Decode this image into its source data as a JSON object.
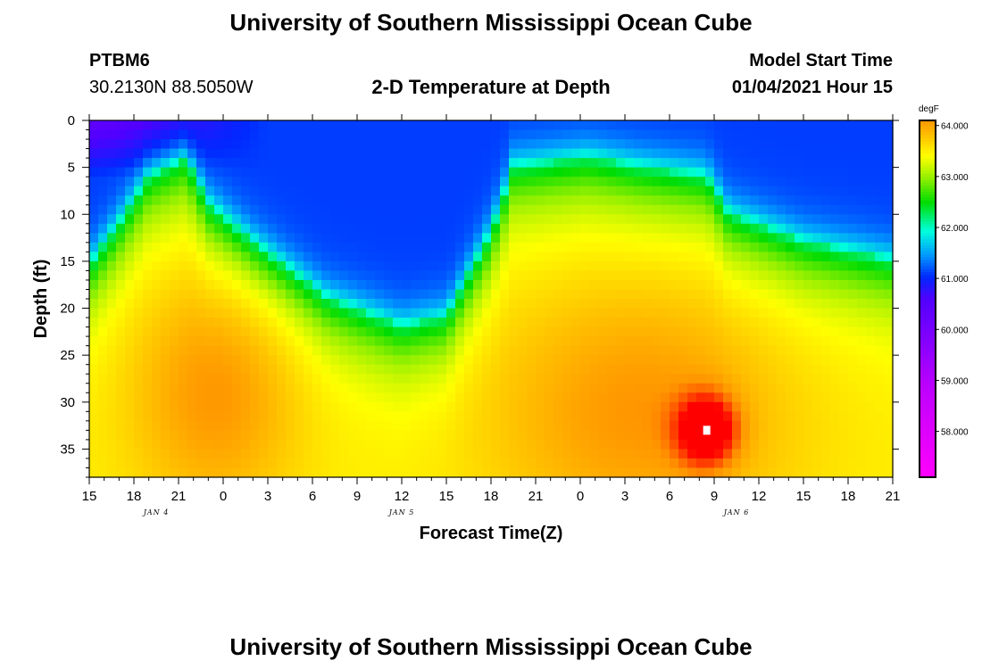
{
  "header": {
    "title": "University of Southern Mississippi Ocean Cube",
    "station": "PTBM6",
    "coordinates": "30.2130N 88.5050W",
    "plot_title": "2-D Temperature at Depth",
    "model_start_label": "Model Start Time",
    "model_start_value": "01/04/2021 Hour 15"
  },
  "footer": {
    "title": "University of Southern Mississippi Ocean Cube"
  },
  "chart_data": {
    "type": "heatmap",
    "title": "2-D Temperature at Depth",
    "xlabel": "Forecast Time(Z)",
    "ylabel": "Depth (ft)",
    "x_range_hours": [
      0,
      54
    ],
    "ylim": [
      0,
      38
    ],
    "x_tick_labels": [
      "15",
      "18",
      "21",
      "0",
      "3",
      "6",
      "9",
      "12",
      "15",
      "18",
      "21",
      "0",
      "3",
      "6",
      "9",
      "12",
      "15",
      "18",
      "21"
    ],
    "y_ticks": [
      0,
      5,
      10,
      15,
      20,
      25,
      30,
      35
    ],
    "day_labels": [
      {
        "label": "JAN 4",
        "hour": 4.5
      },
      {
        "label": "JAN 5",
        "hour": 21
      },
      {
        "label": "JAN 6",
        "hour": 43.5
      }
    ],
    "colorbar": {
      "unit": "degF",
      "range": [
        57.1,
        64.1
      ],
      "ticks": [
        "64.000",
        "63.000",
        "62.000",
        "61.000",
        "60.000",
        "59.000",
        "58.000"
      ],
      "tick_values": [
        64,
        63,
        62,
        61,
        60,
        59,
        58
      ]
    },
    "thermocline_depth_ft": [
      {
        "hour": 0,
        "depth": 15.5
      },
      {
        "hour": 2,
        "depth": 11
      },
      {
        "hour": 4,
        "depth": 6
      },
      {
        "hour": 6.5,
        "depth": 4
      },
      {
        "hour": 8,
        "depth": 9
      },
      {
        "hour": 11,
        "depth": 13
      },
      {
        "hour": 16,
        "depth": 19
      },
      {
        "hour": 21,
        "depth": 22
      },
      {
        "hour": 24,
        "depth": 21
      },
      {
        "hour": 27,
        "depth": 12
      },
      {
        "hour": 28.5,
        "depth": 5
      },
      {
        "hour": 33.5,
        "depth": 4
      },
      {
        "hour": 37,
        "depth": 5
      },
      {
        "hour": 41.5,
        "depth": 6
      },
      {
        "hour": 43,
        "depth": 10
      },
      {
        "hour": 48,
        "depth": 13
      },
      {
        "hour": 54,
        "depth": 15
      }
    ],
    "warm_cores": [
      {
        "hour": 8.5,
        "depth": 29,
        "peak_degF": 63.8
      },
      {
        "hour": 37,
        "depth": 31,
        "peak_degF": 64.0
      },
      {
        "hour": 41.5,
        "depth": 33,
        "peak_degF": 64.1
      }
    ],
    "max_marker": {
      "hour": 41.5,
      "depth": 33
    }
  }
}
